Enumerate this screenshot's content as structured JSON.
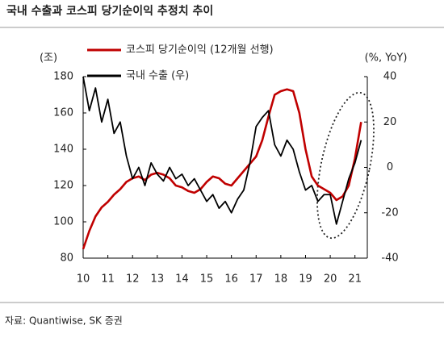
{
  "chart_data": {
    "type": "line",
    "title": "국내 수출과 코스피 당기순이익 추정치 추이",
    "source": "자료: Quantiwise, SK 증권",
    "y_label": "(조)",
    "y2_label": "(%, YoY)",
    "x": [
      10,
      10.25,
      10.5,
      10.75,
      11,
      11.25,
      11.5,
      11.75,
      12,
      12.25,
      12.5,
      12.75,
      13,
      13.25,
      13.5,
      13.75,
      14,
      14.25,
      14.5,
      14.75,
      15,
      15.25,
      15.5,
      15.75,
      16,
      16.25,
      16.5,
      16.75,
      17,
      17.25,
      17.5,
      17.75,
      18,
      18.25,
      18.5,
      18.75,
      19,
      19.25,
      19.5,
      19.75,
      20,
      20.25,
      20.5,
      20.75,
      21,
      21.25
    ],
    "series": [
      {
        "name": "코스피 당기순이익 (12개월 선행)",
        "color": "#c00000",
        "values": [
          85,
          95,
          103,
          108,
          111,
          115,
          118,
          122,
          124,
          125,
          123,
          126,
          127,
          126,
          124,
          120,
          119,
          117,
          116,
          118,
          122,
          125,
          124,
          121,
          120,
          124,
          128,
          132,
          136,
          145,
          158,
          170,
          172,
          173,
          172,
          160,
          140,
          125,
          120,
          118,
          116,
          112,
          114,
          120,
          135,
          155
        ]
      },
      {
        "name": "국내 수출 (우)",
        "color": "#000000",
        "axis": "y2",
        "values": [
          40,
          25,
          35,
          20,
          30,
          15,
          20,
          5,
          -5,
          0,
          -8,
          2,
          -3,
          -6,
          0,
          -5,
          -3,
          -8,
          -5,
          -10,
          -15,
          -12,
          -18,
          -15,
          -20,
          -14,
          -10,
          2,
          18,
          22,
          25,
          10,
          5,
          12,
          8,
          -2,
          -10,
          -8,
          -15,
          -12,
          -12,
          -25,
          -15,
          -5,
          2,
          12
        ]
      }
    ],
    "xlim": [
      10,
      21.5
    ],
    "xticks": [
      10,
      11,
      12,
      13,
      14,
      15,
      16,
      17,
      18,
      19,
      20,
      21
    ],
    "ylim": [
      80,
      180
    ],
    "yticks": [
      80,
      100,
      120,
      140,
      160,
      180
    ],
    "y2lim": [
      -40,
      40
    ],
    "y2ticks": [
      -40,
      -20,
      0,
      20,
      40
    ]
  }
}
